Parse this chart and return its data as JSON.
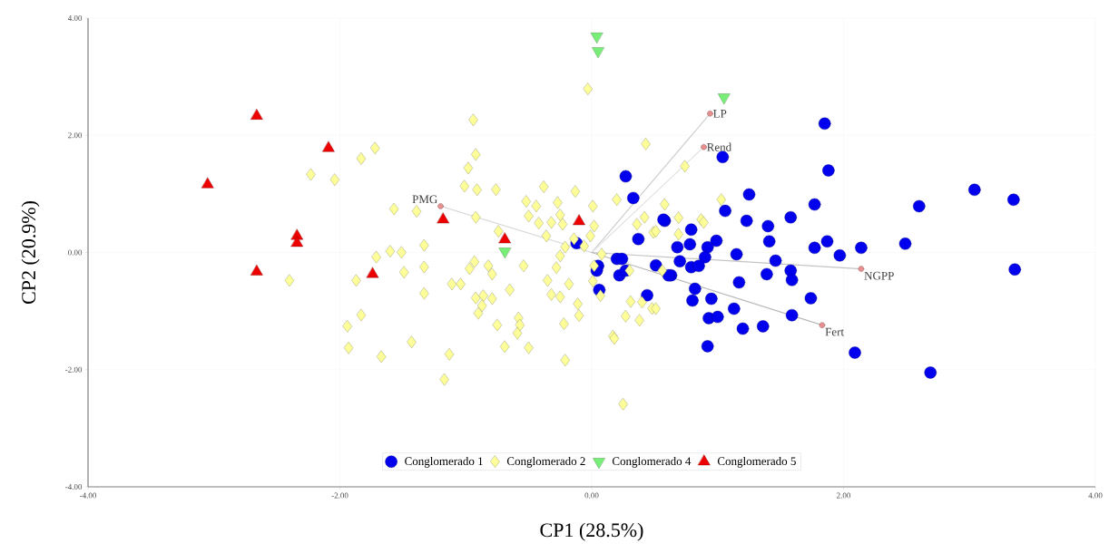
{
  "chart_data": {
    "type": "scatter",
    "xlabel": "CP1 (28.5%)",
    "ylabel": "CP2 (20.9%)",
    "xlim": [
      -4,
      4
    ],
    "ylim": [
      -4,
      4
    ],
    "xticks": [
      {
        "value": -4,
        "label": "-4.00"
      },
      {
        "value": -2,
        "label": "-2.00"
      },
      {
        "value": 0,
        "label": "0.00"
      },
      {
        "value": 2,
        "label": "2.00"
      },
      {
        "value": 4,
        "label": "4.00"
      }
    ],
    "yticks": [
      {
        "value": -4,
        "label": "-4.00"
      },
      {
        "value": -2,
        "label": "-2.00"
      },
      {
        "value": 0,
        "label": "0.00"
      },
      {
        "value": 2,
        "label": "2.00"
      },
      {
        "value": 4,
        "label": "4.00"
      }
    ],
    "grid": true,
    "legend": "bottom",
    "series": [
      {
        "name": "Conglomerado 1",
        "color": "#0000ee",
        "marker": "circle",
        "x": [
          1.85,
          1.88,
          1.04,
          1.25,
          1.77,
          1.06,
          0.58,
          1.23,
          1.58,
          1.4,
          0.79,
          1.41,
          0.99,
          0.92,
          0.68,
          0.78,
          1.77,
          1.87,
          1.97,
          2.14,
          1.15,
          0.9,
          0.7,
          0.79,
          0.85,
          1.46,
          0.51,
          0.63,
          1.58,
          1.59,
          1.39,
          1.17,
          0.82,
          1.74,
          0.8,
          0.95,
          1.13,
          0.93,
          1.0,
          1.59,
          1.2,
          1.36,
          0.92,
          2.09,
          2.6,
          3.04,
          3.35,
          2.49,
          3.36,
          2.69,
          0.27,
          0.33,
          0.57,
          0.37,
          0.2,
          0.24,
          0.05,
          0.04,
          0.22,
          0.06,
          0.44,
          0.61,
          -0.12,
          0.27
        ],
        "values": [
          2.2,
          1.4,
          1.63,
          0.99,
          0.82,
          0.71,
          0.54,
          0.54,
          0.6,
          0.45,
          0.39,
          0.19,
          0.2,
          0.09,
          0.09,
          0.14,
          0.08,
          0.19,
          -0.05,
          0.08,
          -0.03,
          -0.08,
          -0.15,
          -0.25,
          -0.23,
          -0.14,
          -0.22,
          -0.39,
          -0.31,
          -0.47,
          -0.37,
          -0.51,
          -0.62,
          -0.78,
          -0.82,
          -0.79,
          -0.96,
          -1.12,
          -1.1,
          -1.07,
          -1.3,
          -1.26,
          -1.6,
          -1.71,
          0.79,
          1.07,
          0.9,
          0.15,
          -0.29,
          -2.05,
          1.3,
          0.93,
          0.56,
          0.23,
          -0.11,
          -0.11,
          -0.23,
          -0.31,
          -0.39,
          -0.64,
          -0.73,
          -0.39,
          0.16,
          -0.31
        ]
      },
      {
        "name": "Conglomerado 2",
        "color": "#ffff99",
        "marker": "diamond",
        "x": [
          -1.72,
          -1.83,
          -2.23,
          -2.04,
          -1.57,
          -1.39,
          -1.33,
          -1.6,
          -1.51,
          -1.71,
          -1.49,
          -1.33,
          -1.87,
          -2.4,
          -1.33,
          -1.83,
          -1.94,
          -1.93,
          -1.43,
          -1.67,
          -1.17,
          -1.13,
          -1.11,
          -0.03,
          -0.94,
          0.43,
          -0.92,
          -0.98,
          -1.01,
          -0.91,
          -0.76,
          -0.38,
          -0.13,
          -0.52,
          -0.44,
          -0.27,
          0.01,
          0.2,
          0.58,
          -0.92,
          -0.5,
          -0.42,
          -0.32,
          -0.23,
          -0.25,
          0.02,
          0.42,
          0.36,
          0.49,
          -0.74,
          -0.36,
          -0.01,
          -0.14,
          -0.06,
          -0.21,
          -0.25,
          0.08,
          -0.54,
          -0.28,
          0.02,
          0.3,
          -0.93,
          -0.97,
          -1.04,
          -0.82,
          -0.79,
          -0.65,
          -0.35,
          -0.18,
          -0.32,
          -0.25,
          0.01,
          0.07,
          -0.11,
          -0.1,
          -0.92,
          -0.86,
          -0.79,
          -0.9,
          -0.87,
          -0.75,
          -0.58,
          -0.57,
          -0.59,
          -0.69,
          -0.5,
          -0.22,
          -0.21,
          0.17,
          0.18,
          0.25,
          0.31,
          0.4,
          0.48,
          0.27,
          0.38,
          0.74,
          1.03,
          0.69,
          0.87,
          0.89,
          0.51,
          0.69,
          0.56,
          0.51
        ],
        "values": [
          1.78,
          1.6,
          1.33,
          1.24,
          0.74,
          0.7,
          0.12,
          0.02,
          0.0,
          -0.08,
          -0.34,
          -0.25,
          -0.48,
          -0.48,
          -0.7,
          -1.07,
          -1.26,
          -1.63,
          -1.53,
          -1.78,
          -2.17,
          -1.74,
          -0.54,
          2.79,
          2.26,
          1.85,
          1.67,
          1.44,
          1.13,
          1.07,
          1.07,
          1.12,
          1.04,
          0.87,
          0.79,
          0.85,
          0.79,
          0.9,
          0.82,
          0.6,
          0.62,
          0.5,
          0.51,
          0.48,
          0.64,
          0.45,
          0.6,
          0.48,
          0.34,
          0.36,
          0.28,
          0.28,
          0.23,
          0.11,
          0.09,
          -0.06,
          -0.03,
          -0.23,
          -0.26,
          -0.23,
          -0.31,
          -0.16,
          -0.28,
          -0.54,
          -0.23,
          -0.37,
          -0.64,
          -0.48,
          -0.54,
          -0.72,
          -0.76,
          -0.49,
          -0.74,
          -0.88,
          -1.08,
          -0.78,
          -0.74,
          -0.79,
          -1.04,
          -0.91,
          -1.24,
          -1.12,
          -1.24,
          -1.38,
          -1.61,
          -1.63,
          -1.22,
          -1.84,
          -1.43,
          -1.47,
          -2.59,
          -0.84,
          -0.85,
          -0.96,
          -1.09,
          -1.16,
          1.47,
          0.9,
          0.59,
          0.56,
          0.51,
          0.36,
          0.31,
          -0.31,
          -0.96
        ]
      },
      {
        "name": "Conglomerado 4",
        "color": "#77ee77",
        "marker": "triangle_down",
        "x": [
          0.04,
          0.05,
          1.05,
          -0.69
        ],
        "values": [
          3.69,
          3.44,
          2.65,
          0.02
        ]
      },
      {
        "name": "Conglomerado 5",
        "color": "#ee0000",
        "marker": "triangle",
        "x": [
          -3.05,
          -2.66,
          -2.09,
          -2.34,
          -2.34,
          -2.66,
          -1.74,
          -1.18,
          -0.69,
          -0.1
        ],
        "values": [
          1.16,
          2.33,
          1.78,
          0.28,
          0.16,
          -0.33,
          -0.37,
          0.56,
          0.22,
          0.53
        ]
      },
      {
        "type": "line",
        "color": "#d9d9d9",
        "marker": "none",
        "x": [
          0,
          -1.2
        ],
        "values": [
          0,
          0.79
        ]
      },
      {
        "type": "line",
        "color": "#cfcfcf",
        "marker": "none",
        "x": [
          0,
          0.94
        ],
        "values": [
          0,
          2.37
        ]
      },
      {
        "type": "line",
        "color": "#e2e2e2",
        "marker": "none",
        "x": [
          0,
          0.89
        ],
        "values": [
          0,
          1.8
        ]
      },
      {
        "type": "line",
        "color": "#c4c4c4",
        "marker": "none",
        "x": [
          0,
          2.14
        ],
        "values": [
          0,
          -0.28
        ]
      },
      {
        "type": "line",
        "color": "#bababa",
        "marker": "none",
        "x": [
          0,
          1.83
        ],
        "values": [
          0,
          -1.24
        ]
      },
      {
        "color": "#e89090",
        "marker": "circle",
        "x": [
          -1.2,
          0.94,
          0.89,
          2.14,
          1.83
        ],
        "values": [
          0.79,
          2.37,
          1.8,
          -0.28,
          -1.24
        ]
      }
    ],
    "annotations": [
      {
        "text": "PMG",
        "x": -1.2,
        "y": 0.79
      },
      {
        "text": "LP",
        "x": 0.94,
        "y": 2.37
      },
      {
        "text": "Rend",
        "x": 0.89,
        "y": 1.8
      },
      {
        "text": "NGPP",
        "x": 2.14,
        "y": -0.28
      },
      {
        "text": "Fert",
        "x": 1.83,
        "y": -1.24
      }
    ]
  }
}
